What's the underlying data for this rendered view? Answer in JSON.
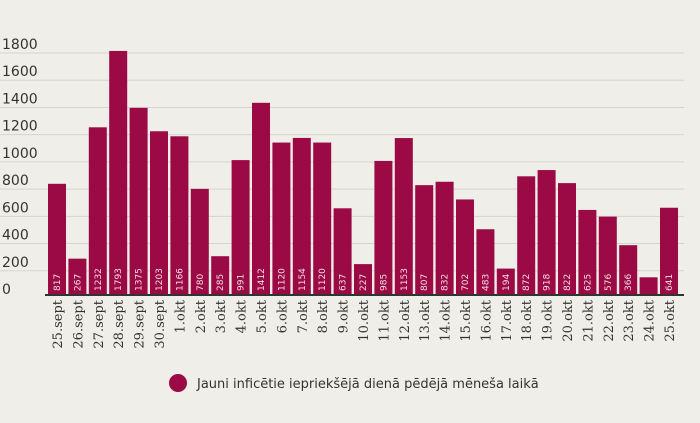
{
  "chart_data": {
    "type": "bar",
    "title": "",
    "xlabel": "",
    "ylabel": "",
    "ylim": [
      0,
      1800
    ],
    "yticks": [
      0,
      200,
      400,
      600,
      800,
      1000,
      1200,
      1400,
      1600,
      1800
    ],
    "grid": true,
    "legend_placement": "bottom",
    "categories": [
      "25.sept",
      "26.sept",
      "27.sept",
      "28.sept",
      "29.sept",
      "30.sept",
      "1.okt",
      "2.okt",
      "3.okt",
      "4.okt",
      "5.okt",
      "6.okt",
      "7.okt",
      "8.okt",
      "9.okt",
      "10.okt",
      "11.okt",
      "12.okt",
      "13.okt",
      "14.okt",
      "15.okt",
      "16.okt",
      "17.okt",
      "18.okt",
      "19.okt",
      "20.okt",
      "21.okt",
      "22.okt",
      "23.okt",
      "24.okt",
      "25.okt"
    ],
    "series": [
      {
        "name": "Jauni inficētie iepriekšējā dienā pēdējā mēneša laikā",
        "color": "#9b0a45",
        "values": [
          817,
          267,
          1232,
          1793,
          1375,
          1203,
          1166,
          780,
          285,
          991,
          1412,
          1120,
          1154,
          1120,
          637,
          227,
          985,
          1153,
          807,
          832,
          702,
          483,
          194,
          872,
          918,
          822,
          625,
          576,
          366,
          130,
          641
        ],
        "labels": [
          "817",
          "267",
          "1232",
          "1793",
          "1375",
          "1203",
          "1166",
          "780",
          "285",
          "991",
          "1412",
          "1120",
          "1154",
          "1120",
          "637",
          "227",
          "985",
          "1153",
          "807",
          "832",
          "702",
          "483",
          "194",
          "872",
          "918",
          "822",
          "625",
          "576",
          "366",
          "",
          "641"
        ]
      }
    ]
  }
}
